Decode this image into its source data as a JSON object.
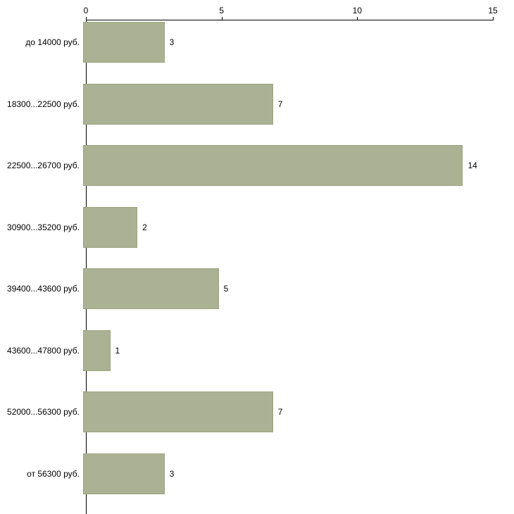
{
  "chart_data": {
    "type": "bar",
    "orientation": "horizontal",
    "title": "",
    "xlabel": "",
    "ylabel": "",
    "categories": [
      "до 14000 руб.",
      "18300...22500 руб.",
      "22500...26700 руб.",
      "30900...35200 руб.",
      "39400...43600 руб.",
      "43600...47800 руб.",
      "52000...56300 руб.",
      "от 56300 руб."
    ],
    "values": [
      3,
      7,
      14,
      2,
      5,
      1,
      7,
      3
    ],
    "value_labels": [
      "3",
      "7",
      "14",
      "2",
      "5",
      "1",
      "7",
      "3"
    ],
    "xlim": [
      0,
      15
    ],
    "xticks": [
      0,
      5,
      10,
      15
    ],
    "xtick_labels": [
      "0",
      "5",
      "10",
      "15"
    ],
    "grid": false,
    "legend": false,
    "colors": {
      "bar_fill": "#abb294",
      "bar_border": "#9aa37f",
      "axis": "#000000",
      "text": "#000000",
      "background": "#ffffff"
    }
  }
}
